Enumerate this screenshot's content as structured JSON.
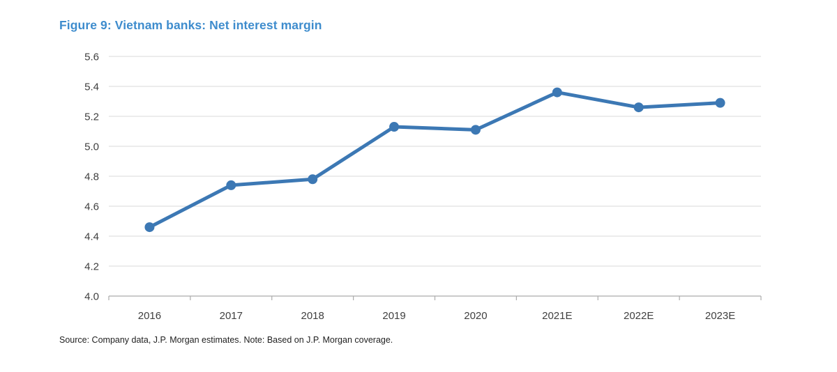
{
  "page": {
    "background": "#ffffff"
  },
  "figure": {
    "title": "Figure 9: Vietnam banks: Net interest margin",
    "title_color": "#3e8ccd",
    "source_note": "Source: Company data, J.P. Morgan estimates. Note: Based on J.P. Morgan coverage."
  },
  "chart_data": {
    "type": "line",
    "title": "Figure 9: Vietnam banks: Net interest margin",
    "categories": [
      "2016",
      "2017",
      "2018",
      "2019",
      "2020",
      "2021E",
      "2022E",
      "2023E"
    ],
    "series": [
      {
        "name": "Net interest margin (%)",
        "values": [
          4.46,
          4.74,
          4.78,
          5.13,
          5.11,
          5.36,
          5.26,
          5.29
        ]
      }
    ],
    "xlabel": "",
    "ylabel": "",
    "ylim": [
      4.0,
      5.6
    ],
    "y_ticks": [
      4.0,
      4.2,
      4.4,
      4.6,
      4.8,
      5.0,
      5.2,
      5.4,
      5.6
    ],
    "y_tick_labels": [
      "4.0",
      "4.2",
      "4.4",
      "4.6",
      "4.8",
      "5.0",
      "5.2",
      "5.4",
      "5.6"
    ],
    "grid": "horizontal",
    "legend": "none",
    "line_color": "#3c78b4",
    "marker": "circle",
    "gridline_color": "#d9d9d9",
    "axis_line_color": "#ababab",
    "tick_label_color": "#3f3f3f"
  }
}
